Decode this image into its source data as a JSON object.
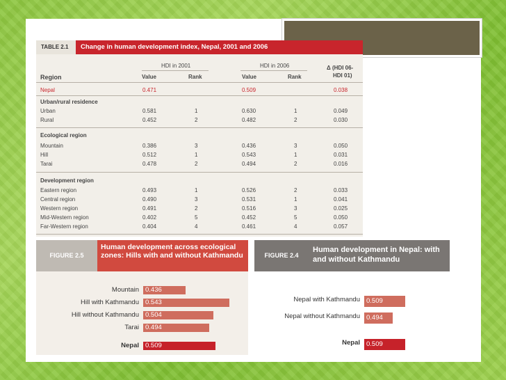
{
  "table": {
    "tag": "TABLE 2.1",
    "title": "Change in human development index, Nepal, 2001 and 2006",
    "hdi2001": "HDI in 2001",
    "hdi2006": "HDI in 2006",
    "delta_line1": "Δ (HDI 06-",
    "delta_line2": "HDI 01)",
    "col_region": "Region",
    "col_value": "Value",
    "col_rank": "Rank",
    "nepal": {
      "name": "Nepal",
      "v1": "0.471",
      "v2": "0.509",
      "d": "0.038"
    },
    "sec1": "Urban/rural residence",
    "rows1": [
      {
        "name": "Urban",
        "v1": "0.581",
        "r1": "1",
        "v2": "0.630",
        "r2": "1",
        "d": "0.049"
      },
      {
        "name": "Rural",
        "v1": "0.452",
        "r1": "2",
        "v2": "0.482",
        "r2": "2",
        "d": "0.030"
      }
    ],
    "sec2": "Ecological region",
    "rows2": [
      {
        "name": "Mountain",
        "v1": "0.386",
        "r1": "3",
        "v2": "0.436",
        "r2": "3",
        "d": "0.050"
      },
      {
        "name": "Hill",
        "v1": "0.512",
        "r1": "1",
        "v2": "0.543",
        "r2": "1",
        "d": "0.031"
      },
      {
        "name": "Tarai",
        "v1": "0.478",
        "r1": "2",
        "v2": "0.494",
        "r2": "2",
        "d": "0.016"
      }
    ],
    "sec3": "Development region",
    "rows3": [
      {
        "name": "Eastern region",
        "v1": "0.493",
        "r1": "1",
        "v2": "0.526",
        "r2": "2",
        "d": "0.033"
      },
      {
        "name": "Central region",
        "v1": "0.490",
        "r1": "3",
        "v2": "0.531",
        "r2": "1",
        "d": "0.041"
      },
      {
        "name": "Western region",
        "v1": "0.491",
        "r1": "2",
        "v2": "0.516",
        "r2": "3",
        "d": "0.025"
      },
      {
        "name": "Mid-Western region",
        "v1": "0.402",
        "r1": "5",
        "v2": "0.452",
        "r2": "5",
        "d": "0.050"
      },
      {
        "name": "Far-Western region",
        "v1": "0.404",
        "r1": "4",
        "v2": "0.461",
        "r2": "4",
        "d": "0.057"
      }
    ]
  },
  "chart_data": [
    {
      "type": "bar",
      "tag": "FIGURE 2.5",
      "title": "Human development across ecological zones: Hills with and without Kathmandu",
      "categories": [
        "Mountain",
        "Hill with Kathmandu",
        "Hill without Kathmandu",
        "Tarai",
        "Nepal"
      ],
      "values": [
        0.436,
        0.543,
        0.504,
        0.494,
        0.509
      ],
      "labels": [
        "0.436",
        "0.543",
        "0.504",
        "0.494",
        "0.509"
      ],
      "highlight": "Nepal"
    },
    {
      "type": "bar",
      "tag": "FIGURE 2.4",
      "title": "Human development in Nepal: with and without Kathmandu",
      "categories": [
        "Nepal with Kathmandu",
        "Nepal without Kathmandu",
        "Nepal"
      ],
      "values": [
        0.509,
        0.494,
        0.509
      ],
      "labels": [
        "0.509",
        "0.494",
        "0.509"
      ],
      "highlight": "Nepal"
    }
  ],
  "colors": {
    "accent_red": "#c8252c",
    "bar_light": "#cf6d5e",
    "header_gray": "#7a7673",
    "title_box": "#6b6249"
  }
}
